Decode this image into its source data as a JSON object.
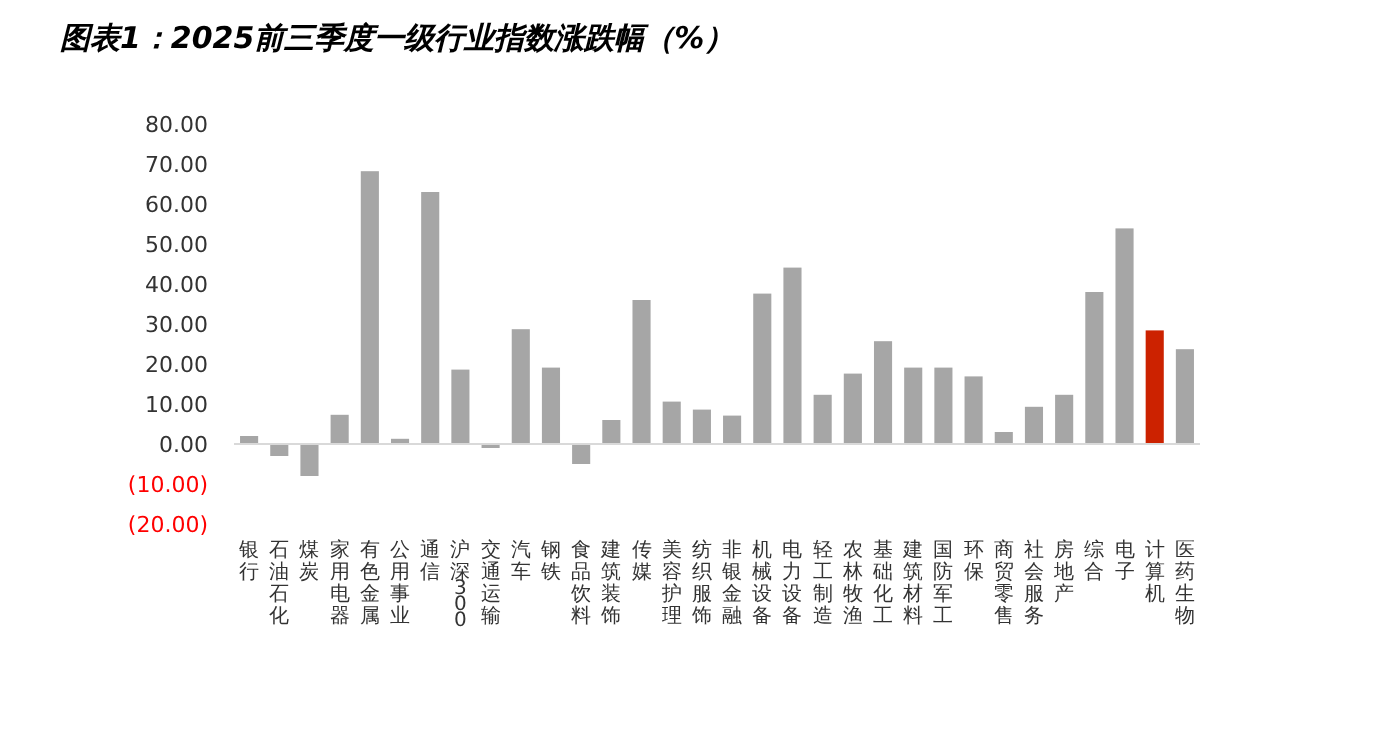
{
  "chart_data": {
    "type": "bar",
    "title": "图表1：2025前三季度一级行业指数涨跌幅（%）",
    "categories": [
      "银行",
      "石油石化",
      "煤炭",
      "家用电器",
      "有色金属",
      "公用事业",
      "通信",
      "沪深300",
      "交通运输",
      "汽车",
      "钢铁",
      "食品饮料",
      "建筑装饰",
      "传媒",
      "美容护理",
      "纺织服饰",
      "非银金融",
      "机械设备",
      "电力设备",
      "轻工制造",
      "农林牧渔",
      "基础化工",
      "建筑材料",
      "国防军工",
      "环保",
      "商贸零售",
      "社会服务",
      "房地产",
      "综合",
      "电子",
      "计算机",
      "医药生物"
    ],
    "values": [
      2.0,
      -3.0,
      -8.0,
      7.3,
      68.2,
      1.3,
      63.0,
      18.6,
      -1.0,
      28.7,
      19.1,
      -5.0,
      6.0,
      36.0,
      10.6,
      8.6,
      7.1,
      37.6,
      44.1,
      12.3,
      17.6,
      25.7,
      19.1,
      19.1,
      16.9,
      3.0,
      9.3,
      12.3,
      38.0,
      53.9,
      28.4,
      23.7
    ],
    "colors": [
      "#a6a6a6",
      "#a6a6a6",
      "#a6a6a6",
      "#a6a6a6",
      "#a6a6a6",
      "#a6a6a6",
      "#a6a6a6",
      "#a6a6a6",
      "#a6a6a6",
      "#a6a6a6",
      "#a6a6a6",
      "#a6a6a6",
      "#a6a6a6",
      "#a6a6a6",
      "#a6a6a6",
      "#a6a6a6",
      "#a6a6a6",
      "#a6a6a6",
      "#a6a6a6",
      "#a6a6a6",
      "#a6a6a6",
      "#a6a6a6",
      "#a6a6a6",
      "#a6a6a6",
      "#a6a6a6",
      "#a6a6a6",
      "#a6a6a6",
      "#a6a6a6",
      "#a6a6a6",
      "#a6a6a6",
      "#cc2200",
      "#a6a6a6"
    ],
    "ylim": [
      -20,
      80
    ],
    "yticks": [
      {
        "value": -20,
        "label": "(20.00)"
      },
      {
        "value": -10,
        "label": "(10.00)"
      },
      {
        "value": 0,
        "label": "0.00"
      },
      {
        "value": 10,
        "label": "10.00"
      },
      {
        "value": 20,
        "label": "20.00"
      },
      {
        "value": 30,
        "label": "30.00"
      },
      {
        "value": 40,
        "label": "40.00"
      },
      {
        "value": 50,
        "label": "50.00"
      },
      {
        "value": 60,
        "label": "60.00"
      },
      {
        "value": 70,
        "label": "70.00"
      },
      {
        "value": 80,
        "label": "80.00"
      }
    ]
  }
}
